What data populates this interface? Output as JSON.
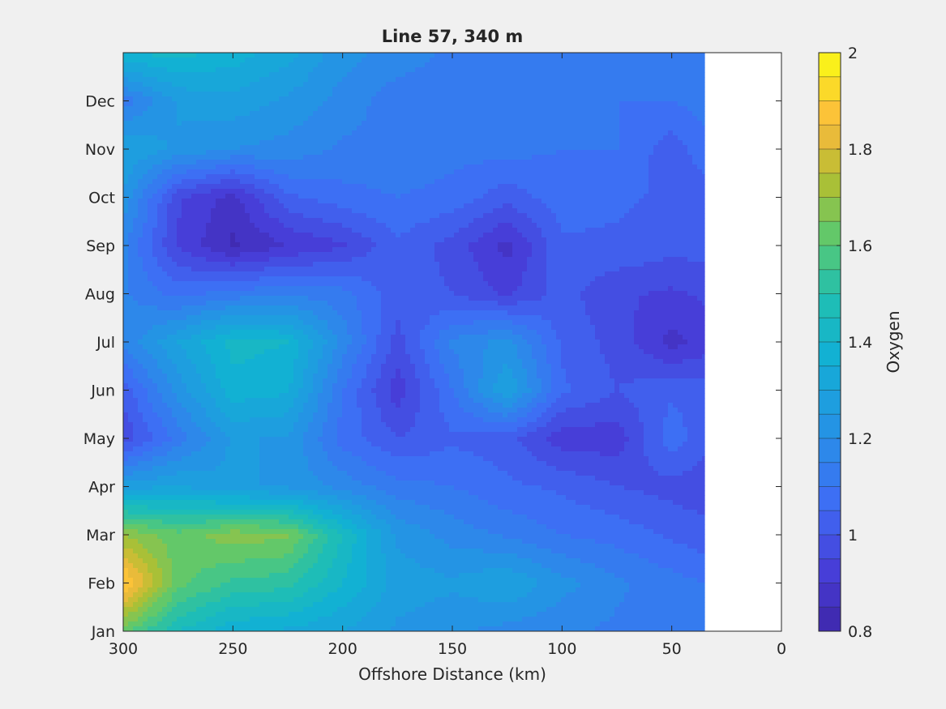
{
  "chart_data": {
    "type": "heatmap",
    "title": "Line 57, 340 m",
    "xlabel": "Offshore Distance (km)",
    "ylabel": "",
    "colorbar_label": "Oxygen",
    "xlim": [
      0,
      300
    ],
    "x_direction": "reversed",
    "x_ticks": [
      300,
      250,
      200,
      150,
      100,
      50,
      0
    ],
    "y_ticks": [
      "Jan",
      "Feb",
      "Mar",
      "Apr",
      "May",
      "Jun",
      "Jul",
      "Aug",
      "Sep",
      "Oct",
      "Nov",
      "Dec"
    ],
    "colorbar_ticks": [
      "0.8",
      "1",
      "1.2",
      "1.4",
      "1.6",
      "1.8",
      "2"
    ],
    "clim": [
      0.8,
      2.0
    ],
    "color_levels": 24,
    "data_extent_km": [
      35,
      300
    ],
    "months": [
      "Jan",
      "Feb",
      "Mar",
      "Apr",
      "May",
      "Jun",
      "Jul",
      "Aug",
      "Sep",
      "Oct",
      "Nov",
      "Dec",
      "Jan"
    ],
    "distances_km": [
      300,
      275,
      250,
      225,
      200,
      175,
      150,
      125,
      100,
      75,
      50,
      35
    ],
    "oxygen": [
      [
        1.62,
        1.45,
        1.36,
        1.34,
        1.3,
        1.24,
        1.21,
        1.18,
        1.16,
        1.14,
        1.12,
        1.12
      ],
      [
        1.92,
        1.62,
        1.54,
        1.52,
        1.4,
        1.28,
        1.26,
        1.3,
        1.22,
        1.16,
        1.12,
        1.1
      ],
      [
        1.7,
        1.62,
        1.68,
        1.66,
        1.45,
        1.24,
        1.18,
        1.14,
        1.1,
        1.08,
        1.04,
        1.02
      ],
      [
        1.28,
        1.3,
        1.26,
        1.24,
        1.18,
        1.12,
        1.1,
        1.06,
        1.04,
        1.0,
        0.98,
        0.97
      ],
      [
        0.96,
        1.12,
        1.26,
        1.24,
        1.08,
        1.0,
        1.04,
        1.02,
        0.92,
        0.92,
        1.08,
        1.02
      ],
      [
        1.02,
        1.22,
        1.38,
        1.36,
        1.1,
        0.92,
        1.1,
        1.3,
        1.06,
        1.0,
        1.04,
        1.02
      ],
      [
        1.16,
        1.3,
        1.42,
        1.4,
        1.18,
        0.98,
        1.16,
        1.22,
        1.04,
        0.98,
        0.88,
        0.92
      ],
      [
        1.16,
        1.08,
        1.12,
        1.14,
        1.12,
        1.02,
        1.0,
        0.94,
        1.02,
        0.96,
        0.94,
        0.96
      ],
      [
        1.16,
        0.94,
        0.84,
        0.9,
        0.94,
        1.04,
        0.98,
        0.88,
        1.04,
        1.04,
        1.02,
        1.02
      ],
      [
        1.24,
        0.96,
        0.88,
        1.04,
        1.08,
        1.1,
        1.08,
        1.02,
        1.08,
        1.06,
        1.04,
        1.02
      ],
      [
        1.3,
        1.24,
        1.2,
        1.18,
        1.14,
        1.14,
        1.12,
        1.12,
        1.1,
        1.1,
        1.02,
        1.08
      ],
      [
        1.12,
        1.26,
        1.28,
        1.24,
        1.18,
        1.12,
        1.12,
        1.12,
        1.12,
        1.1,
        1.1,
        1.12
      ],
      [
        1.4,
        1.42,
        1.38,
        1.32,
        1.22,
        1.18,
        1.14,
        1.12,
        1.12,
        1.12,
        1.1,
        1.12
      ]
    ]
  }
}
